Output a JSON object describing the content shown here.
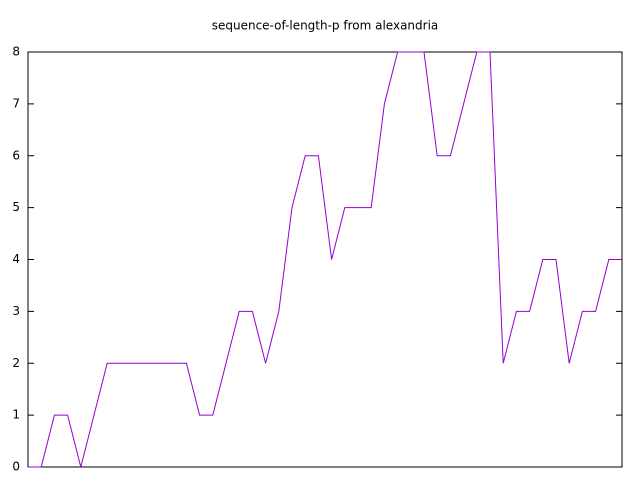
{
  "chart_data": {
    "type": "line",
    "title": "sequence-of-length-p from alexandria",
    "values": [
      0,
      0,
      1,
      1,
      0,
      1,
      2,
      2,
      2,
      2,
      2,
      2,
      2,
      1,
      1,
      2,
      3,
      3,
      2,
      3,
      5,
      6,
      6,
      4,
      5,
      5,
      5,
      7,
      8,
      8,
      8,
      6,
      6,
      7,
      8,
      8,
      2,
      3,
      3,
      4,
      4,
      2,
      3,
      3,
      4,
      4
    ],
    "color": "#9400d3",
    "ylim": [
      0,
      8
    ],
    "yticks": [
      0,
      1,
      2,
      3,
      4,
      5,
      6,
      7,
      8
    ]
  }
}
